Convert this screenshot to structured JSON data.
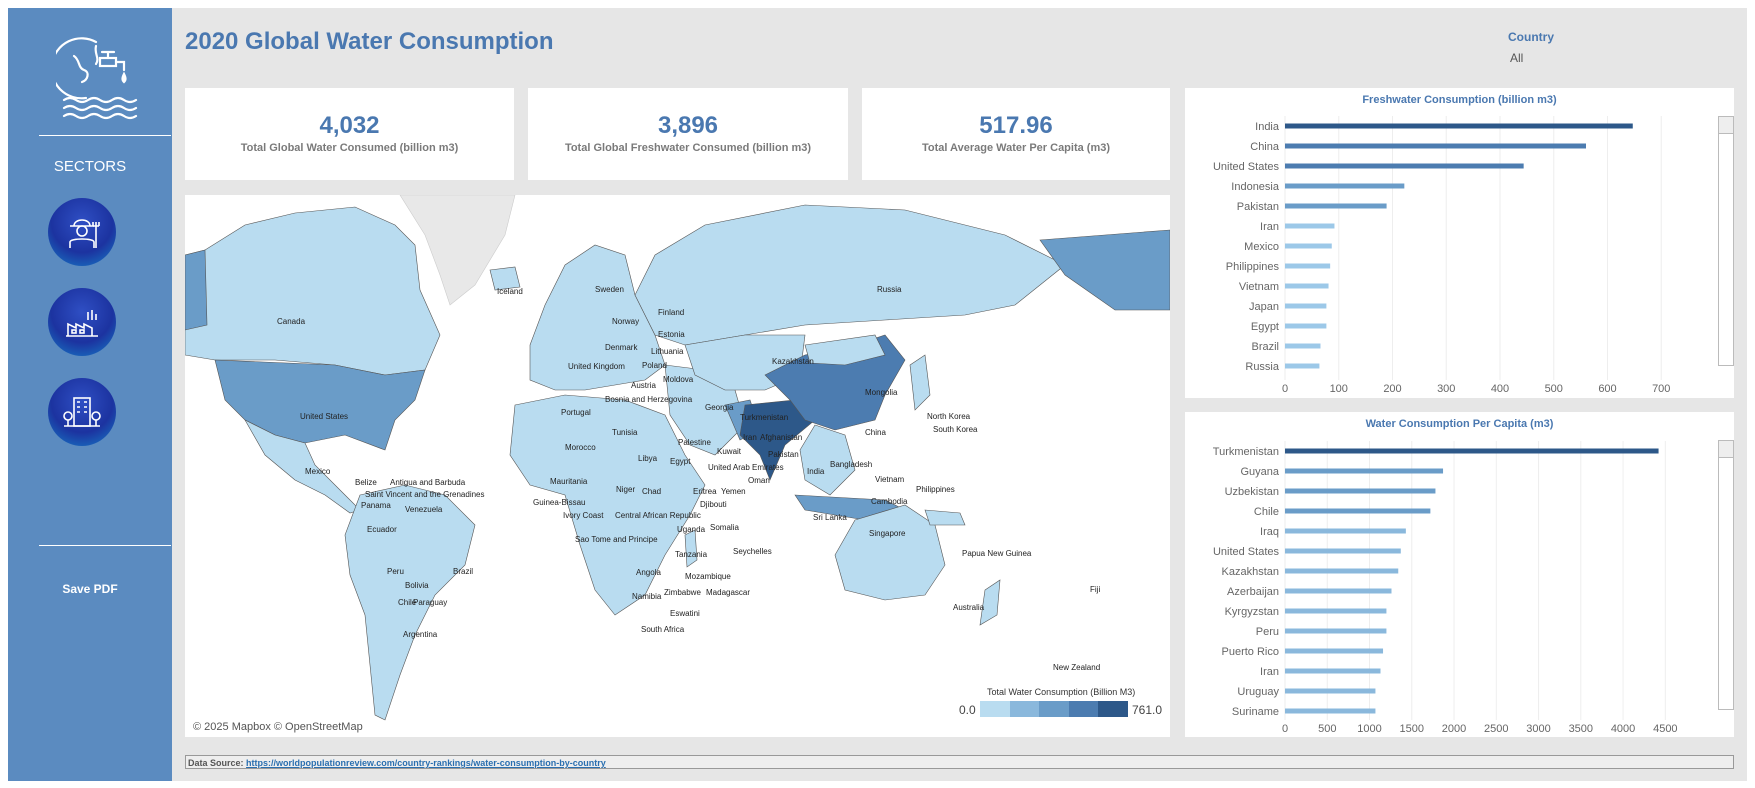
{
  "dashboard": {
    "title": "2020 Global Water Consumption",
    "filter_label": "Country",
    "filter_value": "All"
  },
  "sidebar": {
    "sectors_label": "SECTORS",
    "save_label": "Save PDF",
    "buttons": [
      "agriculture-icon",
      "industry-icon",
      "domestic-icon"
    ]
  },
  "kpis": [
    {
      "value": "4,032",
      "label": "Total Global Water Consumed (billion m3)"
    },
    {
      "value": "3,896",
      "label": "Total Global Freshwater Consumed (billion m3)"
    },
    {
      "value": "517.96",
      "label": "Total Average Water Per Capita (m3)"
    }
  ],
  "map": {
    "attribution": "© 2025 Mapbox © OpenStreetMap",
    "legend_title": "Total Water Consumption (Billion M3)",
    "legend_min": "0.0",
    "legend_max": "761.0",
    "legend_colors": [
      "#b9dcf0",
      "#8ab8dc",
      "#6a9cc8",
      "#4c7cb0",
      "#2d5889"
    ],
    "labels": [
      "Canada",
      "United States",
      "Mexico",
      "Belize",
      "Antigua and Barbuda",
      "Saint Vincent and the Grenadines",
      "Panama",
      "Venezuela",
      "Ecuador",
      "Peru",
      "Brazil",
      "Bolivia",
      "Chile",
      "Paraguay",
      "Argentina",
      "Iceland",
      "Sweden",
      "Finland",
      "Norway",
      "Estonia",
      "Denmark",
      "Lithuania",
      "United Kingdom",
      "Poland",
      "Moldova",
      "Bosnia and Herzegovina",
      "Portugal",
      "Austria",
      "Georgia",
      "Tunisia",
      "Morocco",
      "Libya",
      "Egypt",
      "Palestine",
      "Mauritania",
      "Niger",
      "Chad",
      "Eritrea",
      "Yemen",
      "Guinea-Bissau",
      "Ivory Coast",
      "Central African Republic",
      "Djibouti",
      "Uganda",
      "Somalia",
      "Sao Tome and Principe",
      "Tanzania",
      "Seychelles",
      "Angola",
      "Zimbabwe",
      "Mozambique",
      "Madagascar",
      "Namibia",
      "Eswatini",
      "South Africa",
      "Russia",
      "Kazakhstan",
      "Turkmenistan",
      "Iran",
      "Kuwait",
      "Afghanistan",
      "Pakistan",
      "United Arab Emirates",
      "Oman",
      "Mongolia",
      "China",
      "North Korea",
      "South Korea",
      "India",
      "Bangladesh",
      "Vietnam",
      "Sri Lanka",
      "Cambodia",
      "Philippines",
      "Singapore",
      "Papua New Guinea",
      "Australia",
      "New Zealand",
      "Fiji"
    ]
  },
  "charts": {
    "freshwater": {
      "type": "bar",
      "orientation": "horizontal",
      "title": "Freshwater Consumption (billion m3)",
      "categories": [
        "India",
        "China",
        "United States",
        "Indonesia",
        "Pakistan",
        "Iran",
        "Mexico",
        "Philippines",
        "Vietnam",
        "Japan",
        "Egypt",
        "Brazil",
        "Russia"
      ],
      "values": [
        647,
        560,
        444,
        222,
        189,
        92,
        87,
        84,
        81,
        77,
        77,
        66,
        64
      ],
      "colors": [
        "#2d5889",
        "#4c7cb0",
        "#4c7cb0",
        "#6a9cc8",
        "#6a9cc8",
        "#9cc8e8",
        "#9cc8e8",
        "#9cc8e8",
        "#9cc8e8",
        "#9cc8e8",
        "#9cc8e8",
        "#9cc8e8",
        "#9cc8e8"
      ],
      "xlim": [
        0,
        720
      ],
      "ticks": [
        0,
        100,
        200,
        300,
        400,
        500,
        600,
        700
      ],
      "grid": true
    },
    "percapita": {
      "type": "bar",
      "orientation": "horizontal",
      "title": "Water Consumption Per Capita (m3)",
      "categories": [
        "Turkmenistan",
        "Guyana",
        "Uzbekistan",
        "Chile",
        "Iraq",
        "United States",
        "Kazakhstan",
        "Azerbaijan",
        "Kyrgyzstan",
        "Peru",
        "Puerto Rico",
        "Iran",
        "Uruguay",
        "Suriname"
      ],
      "values": [
        4420,
        1870,
        1780,
        1720,
        1430,
        1370,
        1340,
        1260,
        1200,
        1200,
        1160,
        1130,
        1070,
        1070
      ],
      "colors": [
        "#2d5889",
        "#6a9cc8",
        "#6a9cc8",
        "#6a9cc8",
        "#8ab8dc",
        "#8ab8dc",
        "#8ab8dc",
        "#8ab8dc",
        "#8ab8dc",
        "#8ab8dc",
        "#8ab8dc",
        "#8ab8dc",
        "#8ab8dc",
        "#8ab8dc"
      ],
      "xlim": [
        0,
        4650
      ],
      "ticks": [
        0,
        500,
        1000,
        1500,
        2000,
        2500,
        3000,
        3500,
        4000,
        4500
      ],
      "grid": true
    }
  },
  "footer": {
    "source_label": "Data Source:",
    "source_url": "https://worldpopulationreview.com/country-rankings/water-consumption-by-country"
  }
}
